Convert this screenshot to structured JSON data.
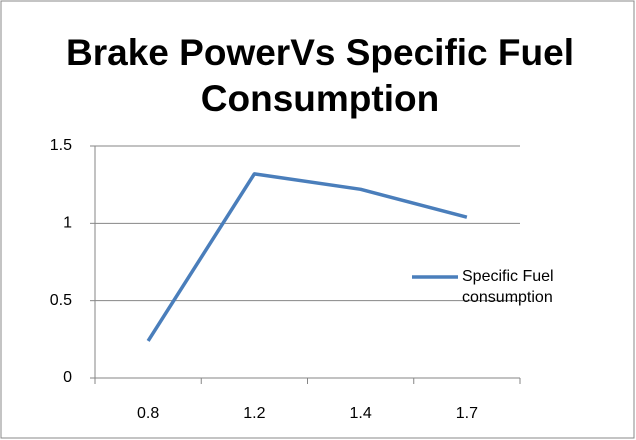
{
  "chart_data": {
    "type": "line",
    "title": "Brake PowerVs Specific Fuel Consumption",
    "categories": [
      "0.8",
      "1.2",
      "1.4",
      "1.7"
    ],
    "series": [
      {
        "name": "Specific Fuel consumption",
        "color": "#4a7ebb",
        "values": [
          0.24,
          1.32,
          1.22,
          1.04
        ]
      }
    ],
    "ylim": [
      0,
      1.5
    ],
    "yticks": [
      0,
      0.5,
      1,
      1.5
    ],
    "grid": true,
    "legend": "right"
  }
}
